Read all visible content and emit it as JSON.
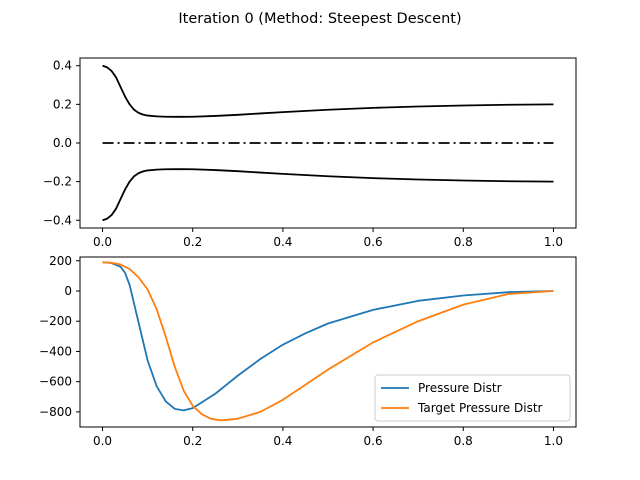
{
  "figure": {
    "title": "Iteration 0 (Method: Steepest Descent)"
  },
  "chart_data": [
    {
      "type": "line",
      "subplot": "top",
      "title": "",
      "xlabel": "",
      "ylabel": "",
      "xlim": [
        -0.05,
        1.05
      ],
      "ylim": [
        -0.44,
        0.44
      ],
      "xticks": [
        0.0,
        0.2,
        0.4,
        0.6,
        0.8,
        1.0
      ],
      "xtick_labels": [
        "0.0",
        "0.2",
        "0.4",
        "0.6",
        "0.8",
        "1.0"
      ],
      "yticks": [
        0.4,
        0.2,
        0.0,
        -0.2,
        -0.4
      ],
      "ytick_labels": [
        "0.4",
        "0.2",
        "0.0",
        "−0.2",
        "−0.4"
      ],
      "grid": false,
      "series": [
        {
          "style": "solid",
          "color": "#000000",
          "x": [
            0.0,
            0.01,
            0.02,
            0.03,
            0.04,
            0.05,
            0.06,
            0.07,
            0.08,
            0.09,
            0.1,
            0.12,
            0.14,
            0.16,
            0.18,
            0.2,
            0.25,
            0.3,
            0.35,
            0.4,
            0.5,
            0.6,
            0.7,
            0.8,
            0.9,
            1.0
          ],
          "y": [
            0.4,
            0.392,
            0.373,
            0.34,
            0.29,
            0.24,
            0.2,
            0.172,
            0.156,
            0.147,
            0.142,
            0.138,
            0.136,
            0.1355,
            0.1355,
            0.136,
            0.14,
            0.146,
            0.153,
            0.16,
            0.172,
            0.182,
            0.189,
            0.194,
            0.198,
            0.2
          ]
        },
        {
          "style": "solid",
          "color": "#000000",
          "x": [
            0.0,
            0.01,
            0.02,
            0.03,
            0.04,
            0.05,
            0.06,
            0.07,
            0.08,
            0.09,
            0.1,
            0.12,
            0.14,
            0.16,
            0.18,
            0.2,
            0.25,
            0.3,
            0.35,
            0.4,
            0.5,
            0.6,
            0.7,
            0.8,
            0.9,
            1.0
          ],
          "y": [
            -0.4,
            -0.392,
            -0.373,
            -0.34,
            -0.29,
            -0.24,
            -0.2,
            -0.172,
            -0.156,
            -0.147,
            -0.142,
            -0.138,
            -0.136,
            -0.1355,
            -0.1355,
            -0.136,
            -0.14,
            -0.146,
            -0.153,
            -0.16,
            -0.172,
            -0.182,
            -0.189,
            -0.194,
            -0.198,
            -0.2
          ]
        },
        {
          "style": "dashdot",
          "color": "#000000",
          "x": [
            0.0,
            1.0
          ],
          "y": [
            0.0,
            0.0
          ]
        }
      ]
    },
    {
      "type": "line",
      "subplot": "bottom",
      "title": "",
      "xlabel": "",
      "ylabel": "",
      "xlim": [
        -0.05,
        1.05
      ],
      "ylim": [
        -900,
        225
      ],
      "xticks": [
        0.0,
        0.2,
        0.4,
        0.6,
        0.8,
        1.0
      ],
      "xtick_labels": [
        "0.0",
        "0.2",
        "0.4",
        "0.6",
        "0.8",
        "1.0"
      ],
      "yticks": [
        200,
        0,
        -200,
        -400,
        -600,
        -800
      ],
      "ytick_labels": [
        "200",
        "0",
        "−200",
        "−400",
        "−600",
        "−800"
      ],
      "grid": false,
      "legend": {
        "placement": "lower-right"
      },
      "series": [
        {
          "name": "Pressure Distr",
          "color": "#1f77b4",
          "x": [
            0.0,
            0.02,
            0.04,
            0.05,
            0.06,
            0.08,
            0.1,
            0.12,
            0.14,
            0.16,
            0.18,
            0.2,
            0.25,
            0.3,
            0.35,
            0.4,
            0.45,
            0.5,
            0.6,
            0.7,
            0.8,
            0.9,
            1.0
          ],
          "y": [
            190,
            185,
            160,
            120,
            40,
            -210,
            -460,
            -630,
            -730,
            -780,
            -790,
            -775,
            -680,
            -560,
            -450,
            -355,
            -280,
            -215,
            -125,
            -65,
            -30,
            -8,
            0
          ]
        },
        {
          "name": "Target Pressure Distr",
          "color": "#ff7f0e",
          "x": [
            0.0,
            0.02,
            0.04,
            0.06,
            0.08,
            0.1,
            0.12,
            0.14,
            0.16,
            0.18,
            0.2,
            0.22,
            0.24,
            0.26,
            0.27,
            0.3,
            0.35,
            0.4,
            0.45,
            0.5,
            0.55,
            0.6,
            0.7,
            0.8,
            0.9,
            1.0
          ],
          "y": [
            190,
            187,
            175,
            145,
            90,
            10,
            -120,
            -300,
            -500,
            -660,
            -760,
            -815,
            -845,
            -855,
            -855,
            -845,
            -800,
            -720,
            -620,
            -520,
            -430,
            -340,
            -200,
            -90,
            -20,
            0
          ]
        }
      ]
    }
  ]
}
